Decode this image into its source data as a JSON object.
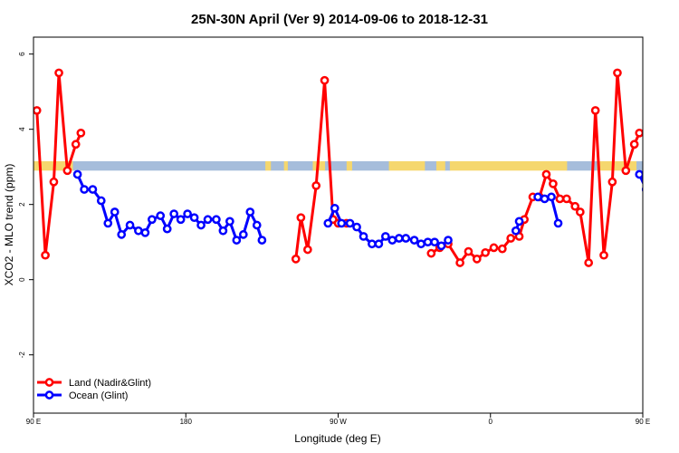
{
  "chart_data": {
    "type": "line",
    "title": "25N-30N April (Ver 9)   2014-09-06 to 2018-12-31",
    "xlabel": "Longitude (deg E)",
    "ylabel": "XCO2 - MLO trend (ppm)",
    "xlim": [
      90,
      450
    ],
    "ylim": [
      -3.55,
      6.45
    ],
    "x_ticks": [
      {
        "value": 90,
        "label": "90 E"
      },
      {
        "value": 180,
        "label": "180"
      },
      {
        "value": 270,
        "label": "90 W"
      },
      {
        "value": 360,
        "label": "0"
      },
      {
        "value": 450,
        "label": "90 E"
      },
      {
        "value": 540,
        "label": "180"
      }
    ],
    "y_ticks": [
      {
        "value": -2,
        "label": "-2"
      },
      {
        "value": 0,
        "label": "0"
      },
      {
        "value": 2,
        "label": "2"
      },
      {
        "value": 4,
        "label": "4"
      },
      {
        "value": 6,
        "label": "6"
      }
    ],
    "legend_position": "bottom-left",
    "band": {
      "y_range": [
        2.9,
        3.15
      ],
      "colors": {
        "land": "#f5d76e",
        "ocean": "#a6bddb"
      },
      "land_ranges": [
        [
          90,
          113
        ],
        [
          227,
          230
        ],
        [
          238,
          240
        ],
        [
          255,
          262
        ],
        [
          275,
          278
        ],
        [
          300,
          321
        ],
        [
          328,
          333
        ],
        [
          336,
          405
        ],
        [
          423,
          446
        ]
      ],
      "ocean_ranges": [
        [
          113,
          227
        ],
        [
          230,
          238
        ],
        [
          240,
          255
        ],
        [
          262,
          275
        ],
        [
          278,
          300
        ],
        [
          321,
          328
        ],
        [
          333,
          336
        ],
        [
          405,
          423
        ],
        [
          446,
          450
        ]
      ]
    },
    "series": [
      {
        "name": "Land (Nadir&Glint)",
        "color": "#ff0000",
        "segments": [
          [
            [
              92,
              4.5
            ],
            [
              97,
              0.65
            ],
            [
              102,
              2.6
            ],
            [
              105,
              5.5
            ],
            [
              110,
              2.9
            ],
            [
              115,
              3.6
            ],
            [
              118,
              3.9
            ]
          ],
          [
            [
              245,
              0.55
            ],
            [
              248,
              1.65
            ],
            [
              252,
              0.8
            ],
            [
              257,
              2.5
            ],
            [
              262,
              5.3
            ],
            [
              267,
              1.6
            ],
            [
              270,
              1.5
            ],
            [
              275,
              1.5
            ]
          ],
          [
            [
              325,
              0.7
            ],
            [
              330,
              0.85
            ],
            [
              335,
              0.95
            ],
            [
              342,
              0.45
            ],
            [
              347,
              0.75
            ],
            [
              352,
              0.55
            ],
            [
              357,
              0.72
            ],
            [
              362,
              0.85
            ],
            [
              367,
              0.82
            ],
            [
              372,
              1.1
            ],
            [
              377,
              1.15
            ],
            [
              380,
              1.6
            ],
            [
              385,
              2.2
            ],
            [
              389,
              2.2
            ],
            [
              393,
              2.8
            ],
            [
              397,
              2.55
            ],
            [
              401,
              2.15
            ],
            [
              405,
              2.15
            ],
            [
              410,
              1.95
            ],
            [
              413,
              1.8
            ],
            [
              418,
              0.45
            ],
            [
              422,
              4.5
            ],
            [
              427,
              0.65
            ],
            [
              432,
              2.6
            ],
            [
              435,
              5.5
            ],
            [
              440,
              2.9
            ],
            [
              445,
              3.6
            ],
            [
              448,
              3.9
            ]
          ]
        ]
      },
      {
        "name": "Ocean (Glint)",
        "color": "#0000ff",
        "segments": [
          [
            [
              116,
              2.8
            ],
            [
              120,
              2.4
            ],
            [
              125,
              2.4
            ],
            [
              130,
              2.1
            ],
            [
              134,
              1.5
            ],
            [
              138,
              1.8
            ],
            [
              142,
              1.2
            ],
            [
              147,
              1.45
            ],
            [
              152,
              1.3
            ],
            [
              156,
              1.25
            ],
            [
              160,
              1.6
            ],
            [
              165,
              1.7
            ],
            [
              169,
              1.35
            ],
            [
              173,
              1.75
            ],
            [
              177,
              1.6
            ],
            [
              181,
              1.75
            ],
            [
              185,
              1.65
            ],
            [
              189,
              1.45
            ],
            [
              193,
              1.6
            ],
            [
              198,
              1.6
            ],
            [
              202,
              1.3
            ],
            [
              206,
              1.55
            ],
            [
              210,
              1.05
            ],
            [
              214,
              1.2
            ],
            [
              218,
              1.8
            ],
            [
              222,
              1.45
            ],
            [
              225,
              1.05
            ]
          ],
          [
            [
              264,
              1.5
            ],
            [
              268,
              1.9
            ],
            [
              272,
              1.5
            ],
            [
              277,
              1.5
            ],
            [
              281,
              1.4
            ],
            [
              285,
              1.15
            ],
            [
              290,
              0.95
            ],
            [
              294,
              0.95
            ],
            [
              298,
              1.15
            ],
            [
              302,
              1.05
            ],
            [
              306,
              1.1
            ],
            [
              310,
              1.1
            ],
            [
              315,
              1.05
            ],
            [
              319,
              0.95
            ],
            [
              323,
              1.0
            ],
            [
              327,
              1.0
            ],
            [
              331,
              0.9
            ],
            [
              335,
              1.05
            ]
          ],
          [
            [
              375,
              1.3
            ],
            [
              377,
              1.55
            ]
          ],
          [
            [
              388,
              2.2
            ],
            [
              392,
              2.15
            ],
            [
              396,
              2.2
            ],
            [
              400,
              1.5
            ]
          ],
          [
            [
              448,
              2.8
            ],
            [
              452,
              2.4
            ],
            [
              457,
              2.4
            ],
            [
              461,
              2.1
            ],
            [
              466,
              1.5
            ],
            [
              470,
              1.8
            ],
            [
              475,
              1.2
            ],
            [
              479,
              1.45
            ],
            [
              484,
              1.3
            ],
            [
              488,
              1.25
            ],
            [
              492,
              1.6
            ],
            [
              497,
              1.7
            ]
          ]
        ]
      }
    ]
  }
}
